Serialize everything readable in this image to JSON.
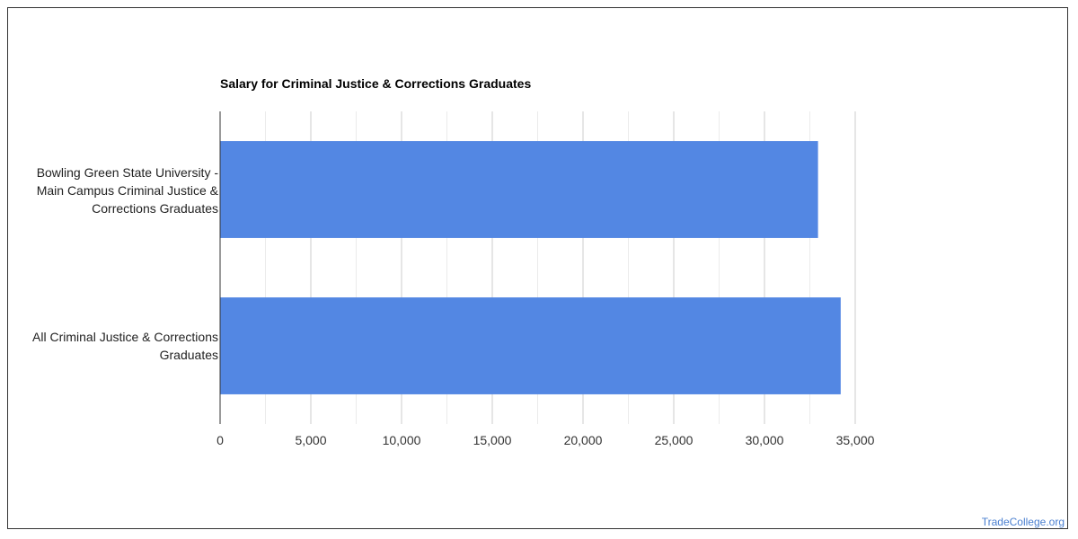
{
  "chart_data": {
    "type": "bar",
    "orientation": "horizontal",
    "title": "Salary for Criminal Justice & Corrections Graduates",
    "categories": [
      "Bowling Green State University - Main Campus Criminal Justice & Corrections Graduates",
      "All Criminal Justice & Corrections Graduates"
    ],
    "values": [
      32950,
      34200
    ],
    "xlim": [
      0,
      35000
    ],
    "x_ticks": [
      "0",
      "5,000",
      "10,000",
      "15,000",
      "20,000",
      "25,000",
      "30,000",
      "35,000"
    ],
    "grid": true,
    "bar_color": "#5387e3"
  },
  "source": "TradeCollege.org"
}
